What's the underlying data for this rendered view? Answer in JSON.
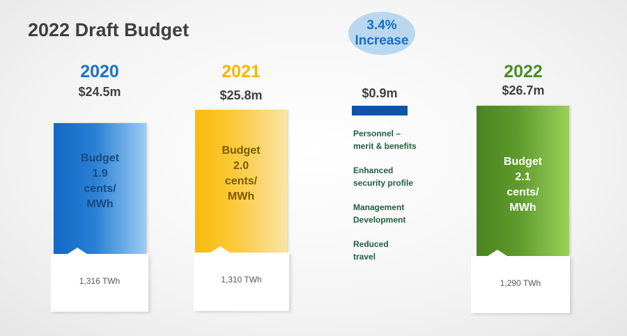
{
  "title": "2022 Draft Budget",
  "badge": {
    "line1": "3.4%",
    "line2": "Increase"
  },
  "colors": {
    "2020": "#1a73c8",
    "2021": "#f5b800",
    "2022": "#4a8c2a",
    "increase_bar": "#0d56a6",
    "items_text": "#1f5e40"
  },
  "columns": [
    {
      "year": "2020",
      "amount": "$24.5m",
      "bar_lines": [
        "Budget",
        "1.9",
        "cents/",
        "MWh"
      ],
      "twh": "1,316 TWh"
    },
    {
      "year": "2021",
      "amount": "$25.8m",
      "bar_lines": [
        "Budget",
        "2.0",
        "cents/",
        "MWh"
      ],
      "twh": "1,310 TWh"
    },
    {
      "year": "2022",
      "amount": "$26.7m",
      "bar_lines": [
        "Budget",
        "2.1",
        "cents/",
        "MWh"
      ],
      "twh": "1,290 TWh"
    }
  ],
  "increase": {
    "amount": "$0.9m",
    "items": [
      "Personnel – merit & benefits",
      "Enhanced security profile",
      "Management Development",
      "Reduced travel"
    ]
  },
  "chart_data": {
    "type": "bar",
    "title": "2022 Draft Budget",
    "categories": [
      "2020",
      "2021",
      "2022"
    ],
    "series": [
      {
        "values": [
          24.5,
          25.8,
          26.7
        ]
      }
    ],
    "unit": "$m",
    "rate_cents_per_mwh": [
      1.9,
      2.0,
      2.1
    ],
    "energy_twh": [
      1316,
      1310,
      1290
    ],
    "increase": 0.9,
    "increase_pct": 3.4
  }
}
